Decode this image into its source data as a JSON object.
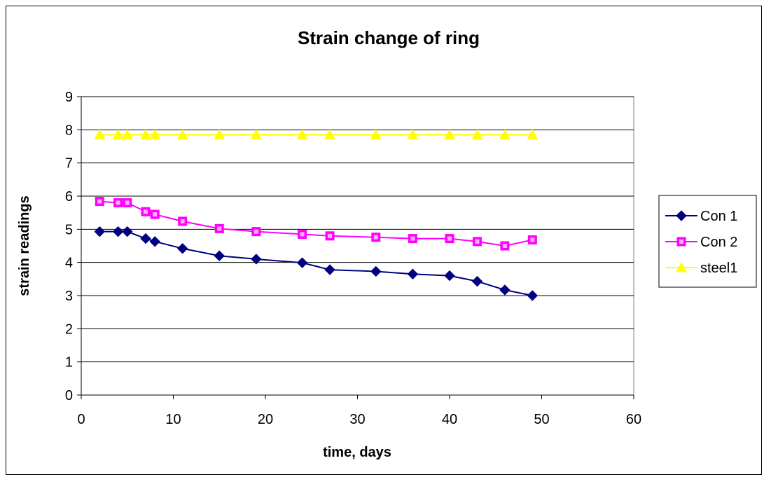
{
  "chart_data": {
    "type": "scatter",
    "title": "Strain change of ring",
    "xlabel": "time, days",
    "ylabel": "strain readings",
    "xlim": [
      0,
      60
    ],
    "ylim": [
      0,
      9
    ],
    "xticks": [
      0,
      10,
      20,
      30,
      40,
      50,
      60
    ],
    "yticks": [
      0,
      1,
      2,
      3,
      4,
      5,
      6,
      7,
      8,
      9
    ],
    "grid": "horizontal",
    "legend": "right",
    "x": [
      2,
      4,
      5,
      7,
      8,
      11,
      15,
      19,
      24,
      27,
      32,
      36,
      40,
      43,
      46,
      49
    ],
    "series": [
      {
        "name": "Con 1",
        "color": "#000080",
        "marker": "diamond",
        "values": [
          4.93,
          4.93,
          4.93,
          4.72,
          4.63,
          4.42,
          4.2,
          4.1,
          3.99,
          3.78,
          3.73,
          3.65,
          3.6,
          3.43,
          3.17,
          3.0
        ]
      },
      {
        "name": "Con 2",
        "color": "#ff00ff",
        "marker": "square",
        "values": [
          5.84,
          5.8,
          5.8,
          5.53,
          5.45,
          5.24,
          5.02,
          4.93,
          4.85,
          4.8,
          4.76,
          4.72,
          4.72,
          4.63,
          4.5,
          4.68
        ]
      },
      {
        "name": "steel1",
        "color": "#ffff00",
        "marker": "triangle",
        "values": [
          7.85,
          7.85,
          7.85,
          7.85,
          7.85,
          7.85,
          7.85,
          7.85,
          7.85,
          7.85,
          7.85,
          7.85,
          7.85,
          7.85,
          7.85,
          7.85
        ]
      }
    ]
  }
}
